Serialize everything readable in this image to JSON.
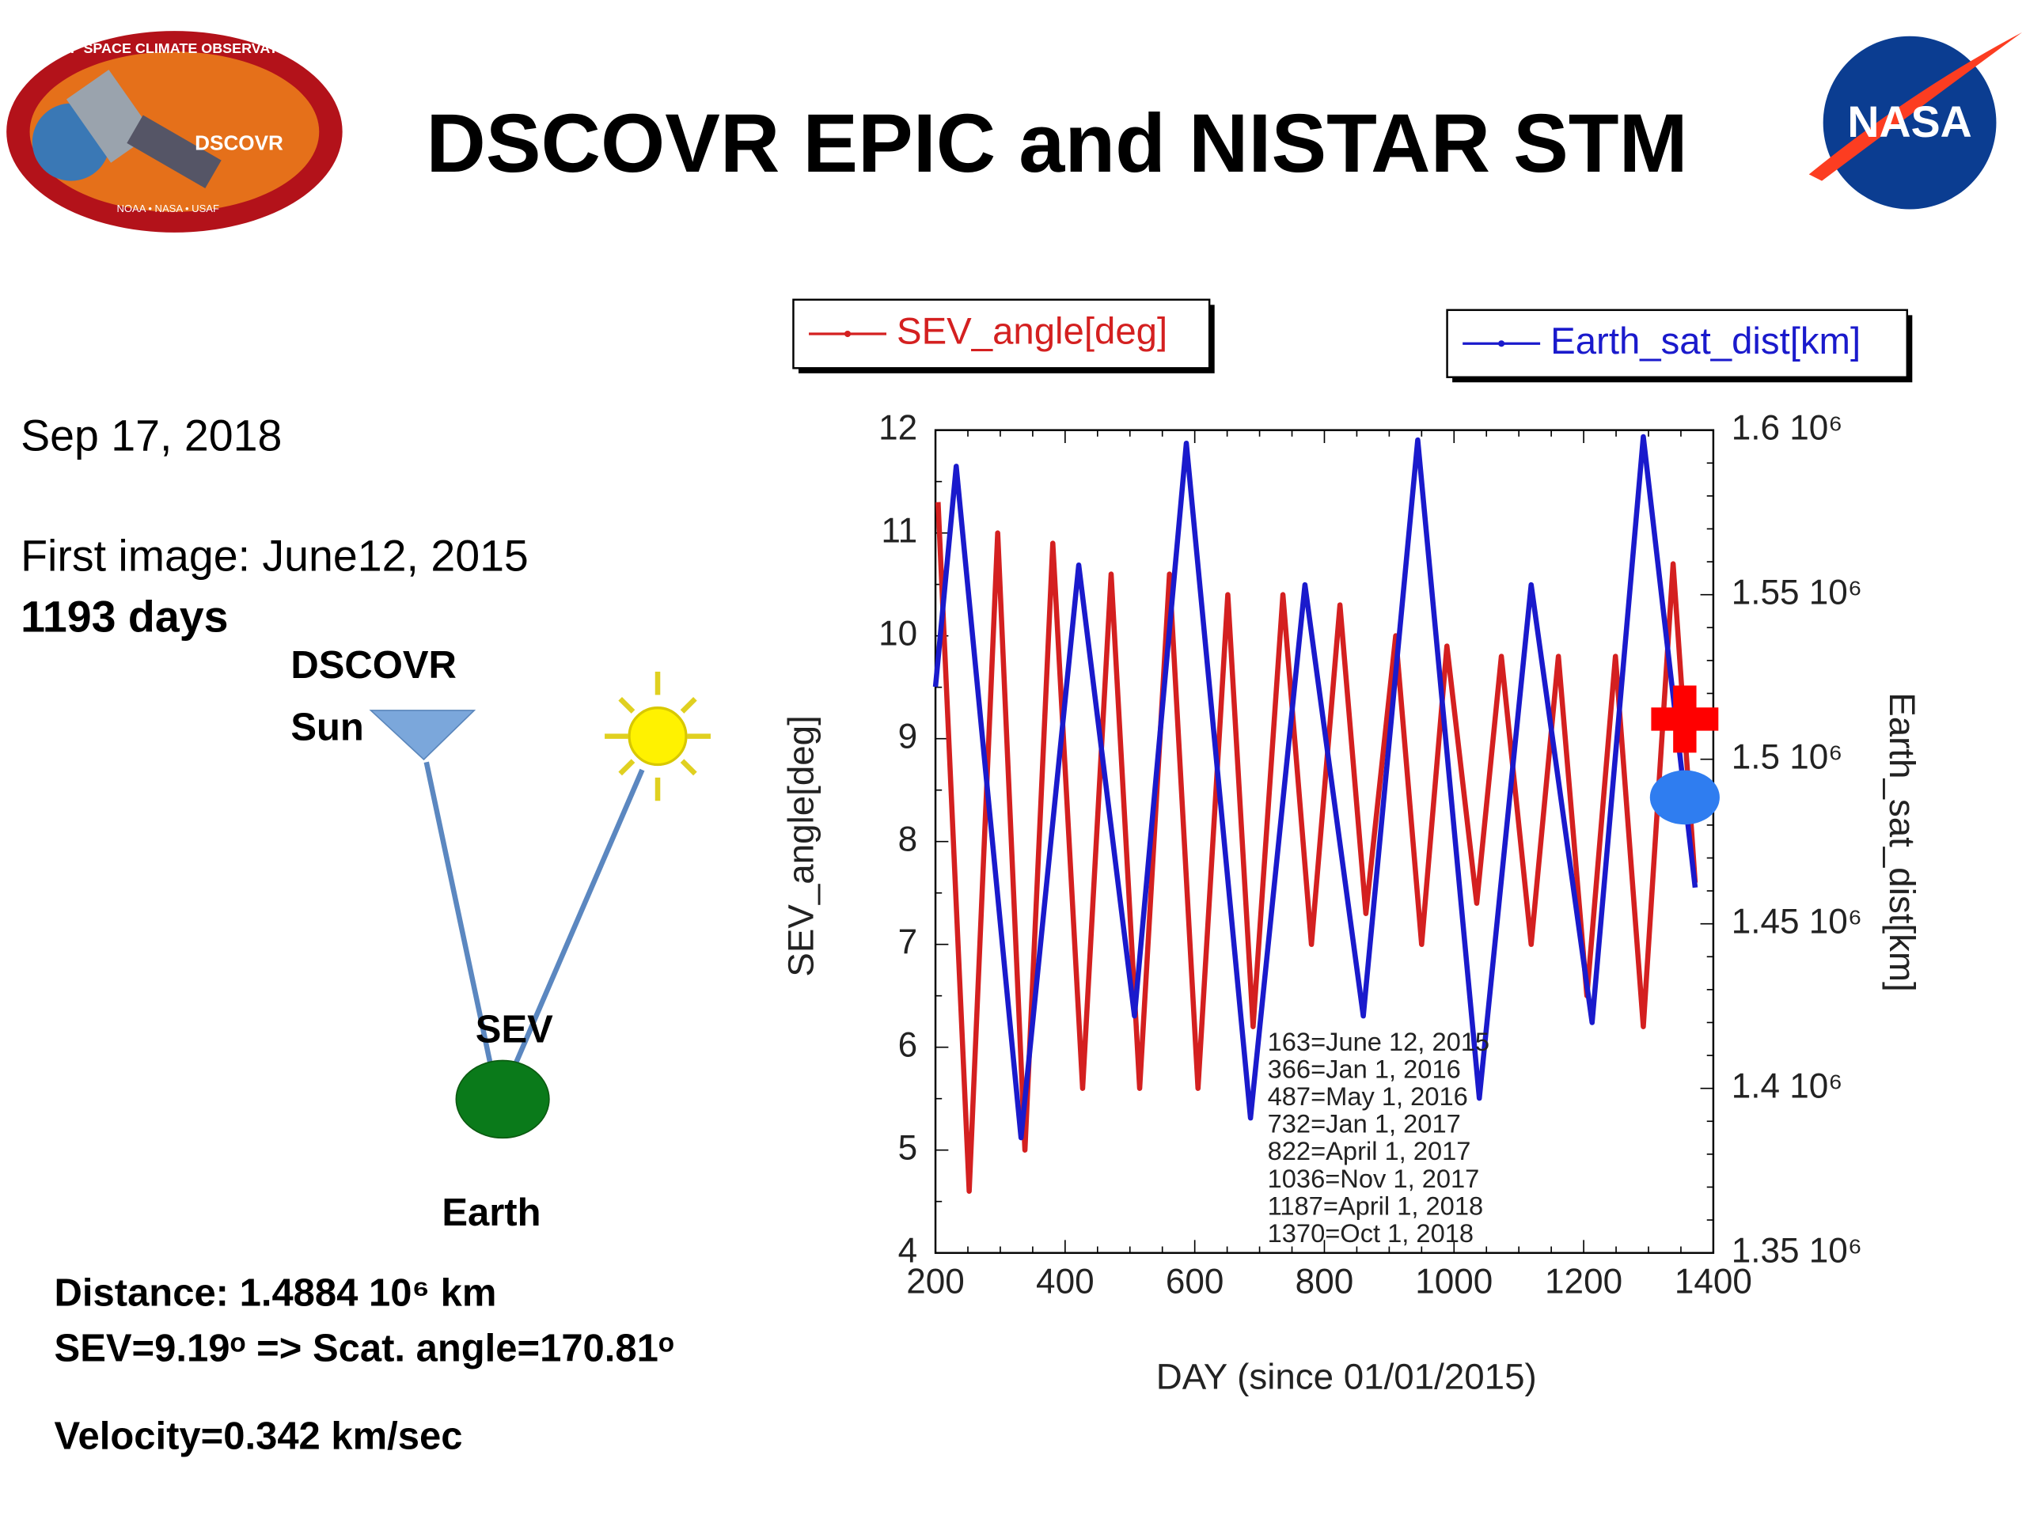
{
  "title": "DSCOVR EPIC and NISTAR STM",
  "logos": {
    "left_ring": "DEEP SPACE CLIMATE OBSERVATORY",
    "left_name": "DSCOVR",
    "left_footer": "NOAA • NASA • USAF",
    "right": "NASA"
  },
  "info": {
    "date": "Sep 17, 2018",
    "first_image": "First image: June12, 2015",
    "days": "1193 days"
  },
  "diagram": {
    "satellite": "DSCOVR",
    "sun": "Sun",
    "angle": "SEV",
    "earth": "Earth"
  },
  "summary": [
    "Distance: 1.4884 10⁶ km",
    "SEV=9.19ᵒ => Scat. angle=170.81ᵒ",
    "Velocity=0.342 km/sec"
  ],
  "chart_data": {
    "type": "line",
    "x_label": "DAY (since 01/01/2015)",
    "y_label": "SEV_angle[deg]",
    "y2_label": "Earth_sat_dist[km]",
    "xlim": [
      200,
      1400
    ],
    "xticks": [
      200,
      400,
      600,
      800,
      1000,
      1200,
      1400
    ],
    "ylim": [
      4,
      12
    ],
    "yticks": [
      4,
      5,
      6,
      7,
      8,
      9,
      10,
      11,
      12
    ],
    "y2lim": [
      1350000,
      1600000
    ],
    "y2ticks": [
      {
        "value": 1350000,
        "label": "1.35 10⁶"
      },
      {
        "value": 1400000,
        "label": "1.4 10⁶"
      },
      {
        "value": 1450000,
        "label": "1.45 10⁶"
      },
      {
        "value": 1500000,
        "label": "1.5 10⁶"
      },
      {
        "value": 1550000,
        "label": "1.55 10⁶"
      },
      {
        "value": 1600000,
        "label": "1.6 10⁶"
      }
    ],
    "series": [
      {
        "name": "SEV_angle[deg]",
        "color": "#d42020",
        "x": [
          204,
          252,
          296,
          338,
          381,
          427,
          471,
          515,
          561,
          605,
          651,
          690,
          736,
          780,
          824,
          864,
          910,
          950,
          989,
          1035,
          1073,
          1119,
          1161,
          1205,
          1249,
          1292,
          1338,
          1372
        ],
        "values": [
          11.3,
          4.6,
          11.0,
          5.0,
          10.9,
          5.6,
          10.6,
          5.6,
          10.6,
          5.6,
          10.4,
          6.2,
          10.4,
          7.0,
          10.3,
          7.3,
          10.0,
          7.0,
          9.9,
          7.4,
          9.8,
          7.0,
          9.8,
          6.5,
          9.8,
          6.2,
          10.7,
          7.6
        ]
      },
      {
        "name": "Earth_sat_dist[km]",
        "color": "#1a1acc",
        "axis": "y2",
        "x": [
          200,
          232,
          332,
          421,
          507,
          587,
          686,
          770,
          860,
          944,
          1039,
          1119,
          1213,
          1292,
          1372
        ],
        "values": [
          1522000,
          1589000,
          1385000,
          1559000,
          1422000,
          1596000,
          1391000,
          1553000,
          1422000,
          1597000,
          1397000,
          1553000,
          1420000,
          1598000,
          1461000
        ]
      }
    ],
    "current": {
      "x": 1356,
      "sev": 9.19,
      "dist": 1488400
    },
    "annotation": [
      "163=June 12, 2015",
      "366=Jan 1, 2016",
      "487=May 1, 2016",
      "732=Jan 1, 2017",
      "822=April 1, 2017",
      "1036=Nov 1, 2017",
      "1187=April 1, 2018",
      "1370=Oct 1, 2018"
    ]
  }
}
